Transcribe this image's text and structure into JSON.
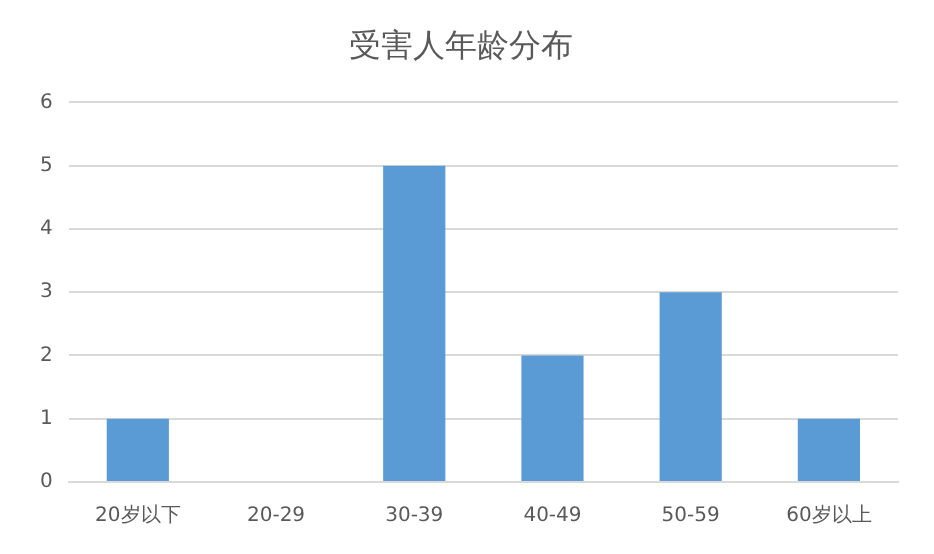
{
  "chart_data": {
    "type": "bar",
    "title": "受害人年龄分布",
    "categories": [
      "20岁以下",
      "20-29",
      "30-39",
      "40-49",
      "50-59",
      "60岁以上"
    ],
    "values": [
      1,
      0,
      5,
      2,
      3,
      1
    ],
    "color": "#5b9bd5",
    "ylim": [
      0,
      6
    ],
    "yticks": [
      0,
      1,
      2,
      3,
      4,
      5,
      6
    ],
    "grid": "y",
    "legend": false
  }
}
